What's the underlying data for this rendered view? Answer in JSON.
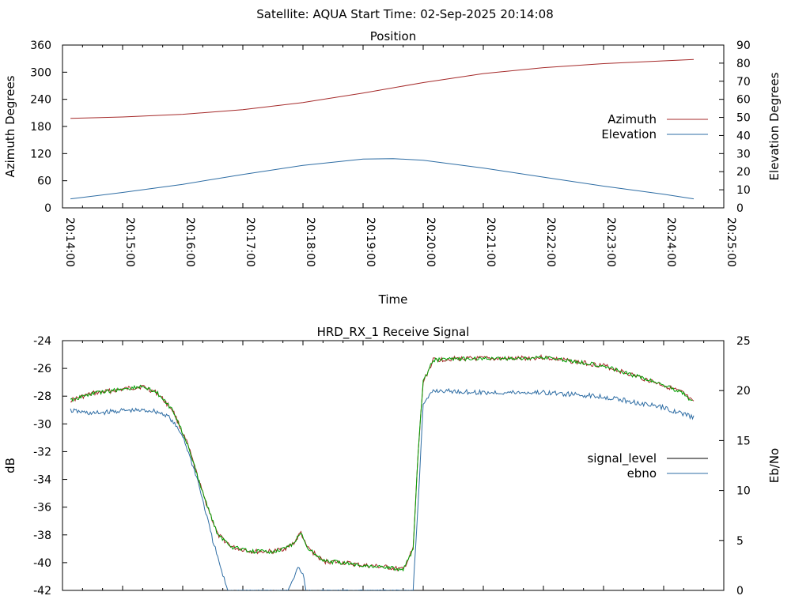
{
  "header": {
    "title": "Satellite: AQUA    Start Time: 02-Sep-2025 20:14:08"
  },
  "chart_data": [
    {
      "type": "line",
      "title": "Position",
      "xlabel": "Time",
      "ylabel": "Azimuth Degrees",
      "y2label": "Elevation Degrees",
      "x_ticks": [
        "20:14:00",
        "20:15:00",
        "20:16:00",
        "20:17:00",
        "20:18:00",
        "20:19:00",
        "20:20:00",
        "20:21:00",
        "20:22:00",
        "20:23:00",
        "20:24:00",
        "20:25:00"
      ],
      "xlim": [
        "20:14:00",
        "20:25:00"
      ],
      "ylim": [
        0,
        360
      ],
      "y2lim": [
        0,
        90
      ],
      "y_ticks": [
        0,
        60,
        120,
        180,
        240,
        300,
        360
      ],
      "y2_ticks": [
        0,
        10,
        20,
        30,
        40,
        50,
        60,
        70,
        80,
        90
      ],
      "legend_position": "right",
      "series": [
        {
          "name": "Azimuth",
          "axis": "y",
          "color": "#a52a2a",
          "points": [
            [
              "20:14:08",
              198
            ],
            [
              "20:15:00",
              201
            ],
            [
              "20:16:00",
              207
            ],
            [
              "20:17:00",
              217
            ],
            [
              "20:18:00",
              233
            ],
            [
              "20:19:00",
              254
            ],
            [
              "20:20:00",
              277
            ],
            [
              "20:21:00",
              297
            ],
            [
              "20:22:00",
              310
            ],
            [
              "20:23:00",
              319
            ],
            [
              "20:24:00",
              325
            ],
            [
              "20:24:30",
              328
            ]
          ]
        },
        {
          "name": "Elevation",
          "axis": "y2",
          "color": "#2e6da4",
          "points": [
            [
              "20:14:08",
              5
            ],
            [
              "20:15:00",
              8.5
            ],
            [
              "20:16:00",
              13
            ],
            [
              "20:17:00",
              18.5
            ],
            [
              "20:18:00",
              23.5
            ],
            [
              "20:19:00",
              27
            ],
            [
              "20:19:30",
              27.2
            ],
            [
              "20:20:00",
              26.3
            ],
            [
              "20:21:00",
              22
            ],
            [
              "20:22:00",
              17
            ],
            [
              "20:23:00",
              12
            ],
            [
              "20:24:00",
              7.5
            ],
            [
              "20:24:30",
              5
            ]
          ]
        }
      ]
    },
    {
      "type": "line",
      "title": "HRD_RX_1 Receive Signal",
      "xlabel": "",
      "ylabel": "dB",
      "y2label": "Eb/No",
      "xlim": [
        "20:14:00",
        "20:25:00"
      ],
      "ylim": [
        -42,
        -24
      ],
      "y2lim": [
        0,
        25
      ],
      "y_ticks": [
        -42,
        -40,
        -38,
        -36,
        -34,
        -32,
        -30,
        -28,
        -26,
        -24
      ],
      "y2_ticks": [
        0,
        5,
        10,
        15,
        20,
        25
      ],
      "legend_position": "right",
      "series": [
        {
          "name": "signal_level",
          "axis": "y",
          "color": "#000000",
          "line_color": "#a52a2a",
          "points": [
            [
              "20:14:08",
              -28.3
            ],
            [
              "20:14:30",
              -27.8
            ],
            [
              "20:15:00",
              -27.5
            ],
            [
              "20:15:20",
              -27.3
            ],
            [
              "20:15:35",
              -27.8
            ],
            [
              "20:15:50",
              -29.0
            ],
            [
              "20:16:05",
              -31.5
            ],
            [
              "20:16:20",
              -35.0
            ],
            [
              "20:16:35",
              -38.0
            ],
            [
              "20:16:50",
              -38.9
            ],
            [
              "20:17:10",
              -39.2
            ],
            [
              "20:17:30",
              -39.2
            ],
            [
              "20:17:45",
              -38.9
            ],
            [
              "20:17:52",
              -38.5
            ],
            [
              "20:17:58",
              -37.8
            ],
            [
              "20:18:03",
              -38.8
            ],
            [
              "20:18:20",
              -39.9
            ],
            [
              "20:18:40",
              -40.0
            ],
            [
              "20:19:00",
              -40.2
            ],
            [
              "20:19:20",
              -40.3
            ],
            [
              "20:19:40",
              -40.5
            ],
            [
              "20:19:50",
              -39.0
            ],
            [
              "20:19:55",
              -32.0
            ],
            [
              "20:20:00",
              -27.0
            ],
            [
              "20:20:10",
              -25.4
            ],
            [
              "20:20:30",
              -25.3
            ],
            [
              "20:21:00",
              -25.3
            ],
            [
              "20:21:30",
              -25.3
            ],
            [
              "20:22:00",
              -25.2
            ],
            [
              "20:22:30",
              -25.5
            ],
            [
              "20:23:00",
              -25.8
            ],
            [
              "20:23:30",
              -26.5
            ],
            [
              "20:24:00",
              -27.2
            ],
            [
              "20:24:20",
              -27.8
            ],
            [
              "20:24:30",
              -28.5
            ]
          ]
        },
        {
          "name": "ebno",
          "axis": "y2",
          "color": "#2e6da4",
          "points": [
            [
              "20:14:08",
              18.0
            ],
            [
              "20:14:30",
              17.7
            ],
            [
              "20:15:00",
              18.0
            ],
            [
              "20:15:30",
              18.0
            ],
            [
              "20:15:45",
              17.5
            ],
            [
              "20:16:00",
              15.5
            ],
            [
              "20:16:15",
              11.0
            ],
            [
              "20:16:30",
              5.0
            ],
            [
              "20:16:40",
              1.5
            ],
            [
              "20:16:45",
              0
            ],
            [
              "20:17:45",
              0
            ],
            [
              "20:17:55",
              2.2
            ],
            [
              "20:18:00",
              1.8
            ],
            [
              "20:18:03",
              0
            ],
            [
              "20:19:50",
              0
            ],
            [
              "20:19:55",
              9.0
            ],
            [
              "20:20:00",
              18.5
            ],
            [
              "20:20:10",
              20.0
            ],
            [
              "20:21:00",
              19.8
            ],
            [
              "20:22:00",
              19.8
            ],
            [
              "20:23:00",
              19.4
            ],
            [
              "20:24:00",
              18.3
            ],
            [
              "20:24:30",
              17.3
            ]
          ]
        }
      ]
    }
  ]
}
